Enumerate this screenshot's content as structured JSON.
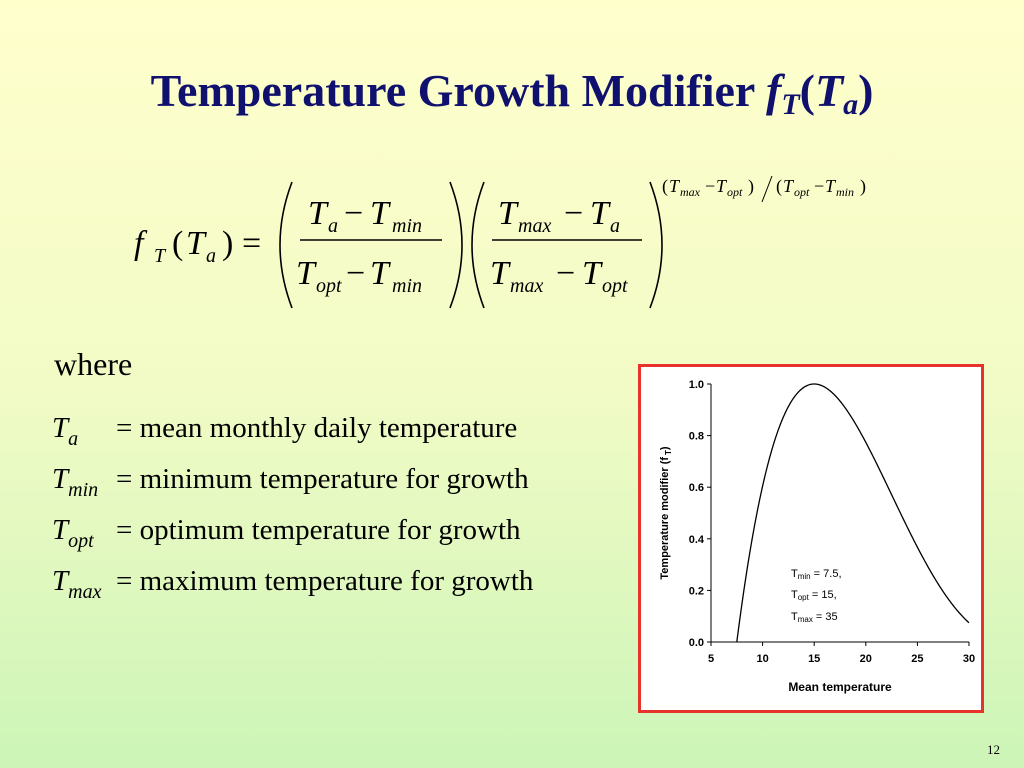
{
  "slide": {
    "title_text": "Temperature Growth Modifier",
    "title_f": "f",
    "title_f_sub": "T",
    "title_open": "(",
    "title_T": "T",
    "title_T_sub": "a",
    "title_close": ")",
    "page_number": "12"
  },
  "equation": {
    "lhs_f": "f",
    "lhs_f_sub": "T",
    "lhs_open": "(",
    "lhs_T": "T",
    "lhs_T_sub": "a",
    "lhs_close": ")",
    "equals": "=",
    "minus": "−",
    "T": "T",
    "sub_a": "a",
    "sub_min": "min",
    "sub_max": "max",
    "sub_opt": "opt",
    "exp_open": "(",
    "exp_close": ")",
    "exp_slash": "/"
  },
  "where_label": "where",
  "definitions": [
    {
      "symbol": "T",
      "subscript": "a",
      "text": "= mean monthly daily temperature"
    },
    {
      "symbol": "T",
      "subscript": "min",
      "text": "= minimum temperature for growth"
    },
    {
      "symbol": "T",
      "subscript": "opt",
      "text": "= optimum temperature for growth"
    },
    {
      "symbol": "T",
      "subscript": "max",
      "text": "= maximum temperature for growth"
    }
  ],
  "chart_data": {
    "type": "line",
    "xlabel": "Mean temperature",
    "ylabel": "Temperature modifier (f T)",
    "ylabel_main": "Temperature modifier (f",
    "ylabel_sub": "T",
    "ylabel_close": ")",
    "xlim": [
      5,
      30
    ],
    "ylim": [
      0,
      1
    ],
    "x_ticks": [
      5,
      10,
      15,
      20,
      25,
      30
    ],
    "y_ticks": [
      0,
      0.2,
      0.4,
      0.6,
      0.8,
      1.0
    ],
    "x_tick_labels": [
      "5",
      "10",
      "15",
      "20",
      "25",
      "30"
    ],
    "y_tick_labels": [
      "0.0",
      "0.2",
      "0.4",
      "0.6",
      "0.8",
      "1.0"
    ],
    "grid": false,
    "params": {
      "Tmin": 7.5,
      "Topt": 15,
      "Tmax": 35
    },
    "annotation": [
      {
        "sym": "T",
        "sub": "min",
        "text": " = 7.5,"
      },
      {
        "sym": "T",
        "sub": "opt",
        "text": " = 15,"
      },
      {
        "sym": "T",
        "sub": "max",
        "text": " = 35"
      }
    ],
    "series": [
      {
        "x": [
          7.5,
          8,
          9,
          10,
          11,
          12,
          13,
          14,
          15,
          16,
          17,
          18,
          19,
          20,
          21,
          22,
          23,
          24,
          25,
          26,
          27,
          28,
          29,
          30
        ],
        "y": [
          0.0,
          0.24,
          0.52,
          0.7,
          0.82,
          0.91,
          0.97,
          0.99,
          1.0,
          0.99,
          0.97,
          0.94,
          0.89,
          0.83,
          0.77,
          0.7,
          0.62,
          0.54,
          0.45,
          0.37,
          0.28,
          0.2,
          0.13,
          0.07
        ]
      }
    ]
  }
}
